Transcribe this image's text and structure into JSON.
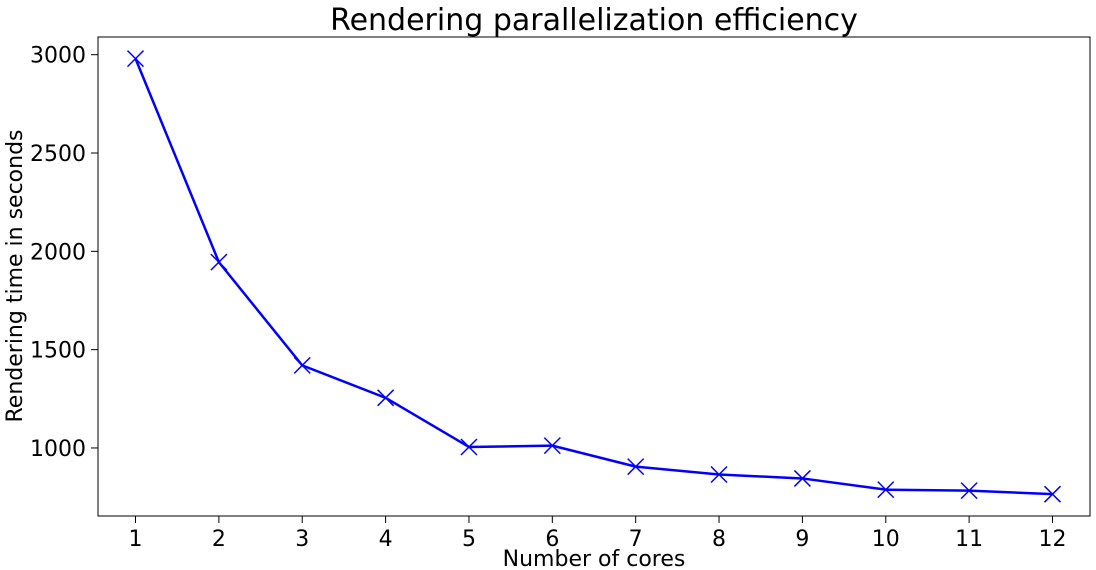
{
  "chart_data": {
    "type": "line",
    "title": "Rendering parallelization efficiency",
    "xlabel": "Number of cores",
    "ylabel": "Rendering time in seconds",
    "x": [
      1,
      2,
      3,
      4,
      5,
      6,
      7,
      8,
      9,
      10,
      11,
      12
    ],
    "series": [
      {
        "values": [
          2980,
          1945,
          1420,
          1255,
          1005,
          1012,
          905,
          865,
          845,
          788,
          783,
          765
        ],
        "color": "#0000ff",
        "marker": "x"
      }
    ],
    "xticks": [
      "1",
      "2",
      "3",
      "4",
      "5",
      "6",
      "7",
      "8",
      "9",
      "10",
      "11",
      "12"
    ],
    "yticks": [
      "1000",
      "1500",
      "2000",
      "2500",
      "3000"
    ],
    "ytick_values": [
      1000,
      1500,
      2000,
      2500,
      3000
    ],
    "xlim": [
      0.55,
      12.45
    ],
    "ylim": [
      654,
      3090
    ],
    "grid": false
  }
}
